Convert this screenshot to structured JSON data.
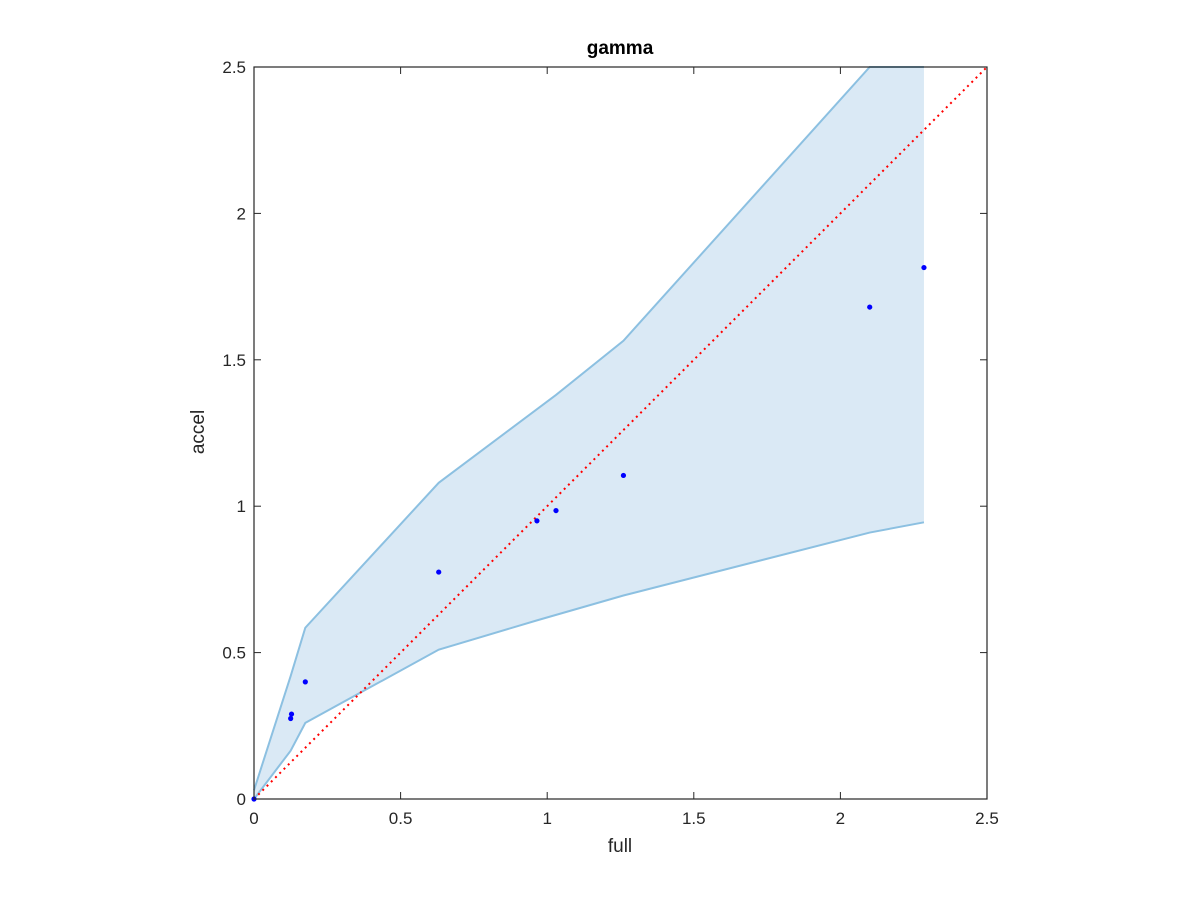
{
  "chart_data": {
    "type": "scatter",
    "title": "gamma",
    "xlabel": "full",
    "ylabel": "accel",
    "xlim": [
      0,
      2.5
    ],
    "ylim": [
      0,
      2.5
    ],
    "xticks": [
      0,
      0.5,
      1,
      1.5,
      2,
      2.5
    ],
    "yticks": [
      0,
      0.5,
      1,
      1.5,
      2,
      2.5
    ],
    "xtick_labels": [
      "0",
      "0.5",
      "1",
      "1.5",
      "2",
      "2.5"
    ],
    "ytick_labels": [
      "0",
      "0.5",
      "1",
      "1.5",
      "2",
      "2.5"
    ],
    "grid": false,
    "colors": {
      "band_fill": "#dae9f5",
      "band_edge": "#8cc0e1",
      "points": "#0000ff",
      "reference_line": "#ff0000",
      "axes": "#262626"
    },
    "points": [
      {
        "x": 0.0,
        "y": 0.0
      },
      {
        "x": 0.125,
        "y": 0.275
      },
      {
        "x": 0.128,
        "y": 0.29
      },
      {
        "x": 0.175,
        "y": 0.4
      },
      {
        "x": 0.63,
        "y": 0.775
      },
      {
        "x": 0.965,
        "y": 0.95
      },
      {
        "x": 1.03,
        "y": 0.985
      },
      {
        "x": 1.26,
        "y": 1.105
      },
      {
        "x": 2.1,
        "y": 1.68
      },
      {
        "x": 2.285,
        "y": 1.815
      }
    ],
    "band_upper": [
      {
        "x": 0.0,
        "y": 0.03
      },
      {
        "x": 0.125,
        "y": 0.42
      },
      {
        "x": 0.175,
        "y": 0.585
      },
      {
        "x": 0.63,
        "y": 1.08
      },
      {
        "x": 1.03,
        "y": 1.38
      },
      {
        "x": 1.26,
        "y": 1.565
      },
      {
        "x": 2.1,
        "y": 2.5
      },
      {
        "x": 2.285,
        "y": 2.5
      }
    ],
    "band_lower": [
      {
        "x": 0.0,
        "y": 0.0
      },
      {
        "x": 0.125,
        "y": 0.165
      },
      {
        "x": 0.175,
        "y": 0.26
      },
      {
        "x": 0.63,
        "y": 0.51
      },
      {
        "x": 0.965,
        "y": 0.61
      },
      {
        "x": 1.26,
        "y": 0.695
      },
      {
        "x": 2.1,
        "y": 0.91
      },
      {
        "x": 2.285,
        "y": 0.945
      }
    ],
    "reference_line": [
      {
        "x": 0,
        "y": 0
      },
      {
        "x": 2.5,
        "y": 2.5
      }
    ]
  }
}
